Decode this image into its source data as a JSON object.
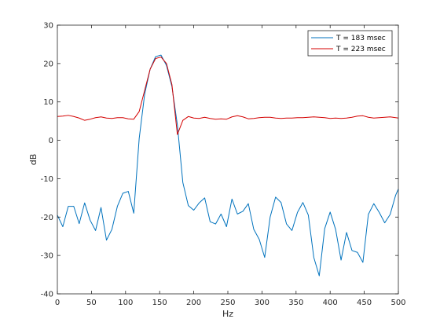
{
  "chart_data": {
    "type": "line",
    "title": "",
    "xlabel": "Hz",
    "ylabel": "dB",
    "xlim": [
      0,
      500
    ],
    "ylim": [
      -40,
      30
    ],
    "xticks": [
      0,
      50,
      100,
      150,
      200,
      250,
      300,
      350,
      400,
      450,
      500
    ],
    "yticks": [
      -40,
      -30,
      -20,
      -10,
      0,
      10,
      20,
      30
    ],
    "grid": false,
    "legend_position": "top-right",
    "series": [
      {
        "name": "T = 183 msec",
        "color": "#0072BD",
        "x": [
          0,
          8,
          16,
          24,
          32,
          40,
          48,
          56,
          64,
          72,
          80,
          88,
          96,
          104,
          112,
          120,
          128,
          136,
          144,
          152,
          160,
          168,
          176,
          184,
          192,
          200,
          208,
          216,
          224,
          232,
          240,
          248,
          256,
          264,
          272,
          280,
          288,
          296,
          304,
          312,
          320,
          328,
          336,
          344,
          352,
          360,
          368,
          376,
          384,
          392,
          400,
          408,
          416,
          424,
          432,
          440,
          448,
          456,
          464,
          472,
          480,
          488,
          496,
          500
        ],
        "y": [
          -19.5,
          -22.5,
          -17.2,
          -17.2,
          -21.7,
          -16.3,
          -20.8,
          -23.5,
          -17.5,
          -26,
          -23.2,
          -17.2,
          -13.8,
          -13.3,
          -19,
          0.5,
          12,
          18.5,
          21.8,
          22.2,
          19.5,
          14,
          4,
          -11,
          -17,
          -18.2,
          -16.3,
          -15,
          -21.2,
          -21.8,
          -19.2,
          -22.5,
          -15.3,
          -19.2,
          -18.5,
          -16.5,
          -23.2,
          -25.8,
          -30.5,
          -20,
          -14.8,
          -16.2,
          -21.8,
          -23.5,
          -18.8,
          -16.2,
          -19.5,
          -30.5,
          -35.3,
          -23,
          -18.7,
          -23.2,
          -31.2,
          -24,
          -28.7,
          -29.2,
          -31.8,
          -19.3,
          -16.5,
          -18.8,
          -21.5,
          -19.3,
          -14.3,
          -12.7
        ]
      },
      {
        "name": "T = 223 msec",
        "color": "#D40000",
        "x": [
          0,
          8,
          16,
          24,
          32,
          40,
          48,
          56,
          64,
          72,
          80,
          88,
          96,
          104,
          112,
          120,
          128,
          136,
          144,
          152,
          160,
          168,
          176,
          184,
          192,
          200,
          208,
          216,
          224,
          232,
          240,
          248,
          256,
          264,
          272,
          280,
          288,
          296,
          304,
          312,
          320,
          328,
          336,
          344,
          352,
          360,
          368,
          376,
          384,
          392,
          400,
          408,
          416,
          424,
          432,
          440,
          448,
          456,
          464,
          472,
          480,
          488,
          496,
          500
        ],
        "y": [
          6.2,
          6.3,
          6.5,
          6.2,
          5.8,
          5.2,
          5.5,
          5.9,
          6.1,
          5.8,
          5.7,
          5.9,
          5.9,
          5.6,
          5.5,
          7.5,
          13,
          18.5,
          21.3,
          21.7,
          20,
          14.5,
          1.5,
          5.2,
          6.2,
          5.8,
          5.7,
          6.0,
          5.7,
          5.5,
          5.6,
          5.5,
          6.1,
          6.4,
          6.1,
          5.6,
          5.7,
          5.9,
          6.0,
          6.0,
          5.8,
          5.7,
          5.8,
          5.8,
          5.9,
          5.9,
          6.0,
          6.1,
          6.0,
          5.9,
          5.7,
          5.8,
          5.7,
          5.8,
          6.0,
          6.3,
          6.4,
          6.0,
          5.8,
          5.9,
          6.0,
          6.1,
          5.9,
          5.8
        ]
      }
    ]
  }
}
